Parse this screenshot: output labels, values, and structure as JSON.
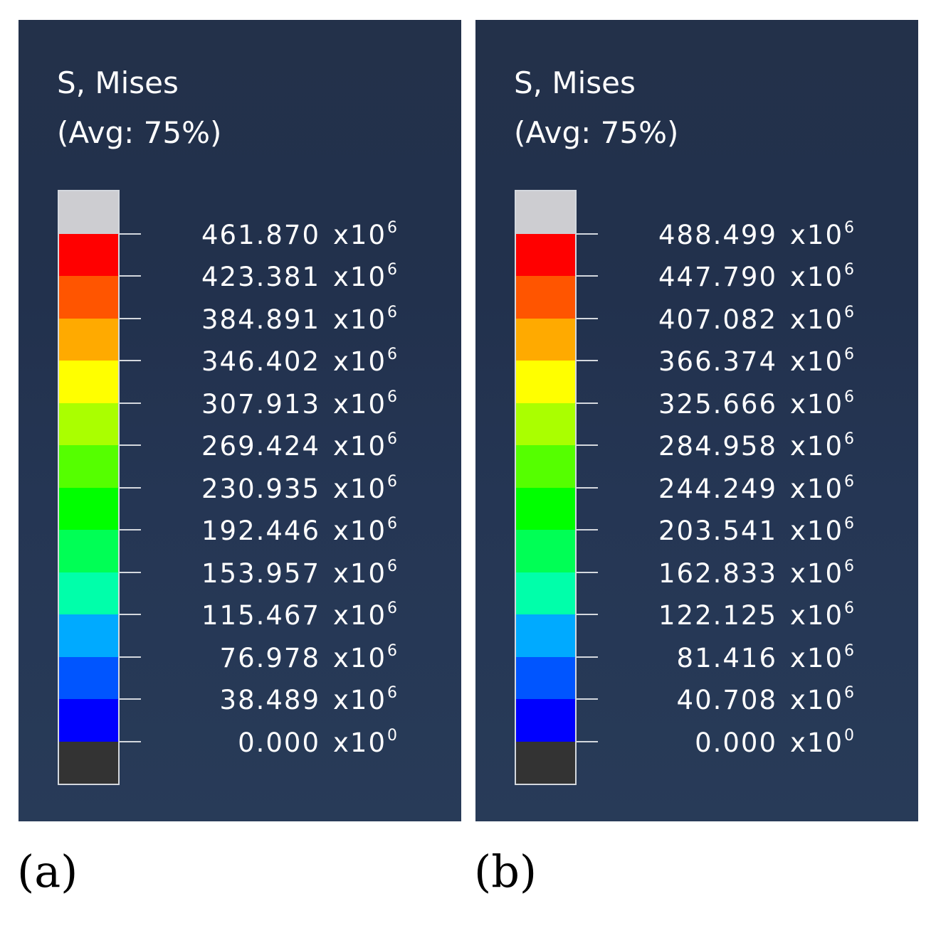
{
  "panels": [
    {
      "title_line1": "S, Mises",
      "title_line2": "(Avg: 75%)",
      "caption": "(a)",
      "colors": [
        "#cdcdd1",
        "#ff0000",
        "#ff5500",
        "#ffaa00",
        "#ffff00",
        "#aaff00",
        "#55ff00",
        "#00ff00",
        "#00ff55",
        "#00ffaa",
        "#00aaff",
        "#0055ff",
        "#0000ff",
        "#333333"
      ],
      "labels": [
        {
          "value": "461.870",
          "unit": "x10",
          "exp": "6"
        },
        {
          "value": "423.381",
          "unit": "x10",
          "exp": "6"
        },
        {
          "value": "384.891",
          "unit": "x10",
          "exp": "6"
        },
        {
          "value": "346.402",
          "unit": "x10",
          "exp": "6"
        },
        {
          "value": "307.913",
          "unit": "x10",
          "exp": "6"
        },
        {
          "value": "269.424",
          "unit": "x10",
          "exp": "6"
        },
        {
          "value": "230.935",
          "unit": "x10",
          "exp": "6"
        },
        {
          "value": "192.446",
          "unit": "x10",
          "exp": "6"
        },
        {
          "value": "153.957",
          "unit": "x10",
          "exp": "6"
        },
        {
          "value": "115.467",
          "unit": "x10",
          "exp": "6"
        },
        {
          "value": "76.978",
          "unit": "x10",
          "exp": "6"
        },
        {
          "value": "38.489",
          "unit": "x10",
          "exp": "6"
        },
        {
          "value": "0.000",
          "unit": "x10",
          "exp": "0"
        }
      ]
    },
    {
      "title_line1": "S, Mises",
      "title_line2": "(Avg: 75%)",
      "caption": "(b)",
      "colors": [
        "#cdcdd1",
        "#ff0000",
        "#ff5500",
        "#ffaa00",
        "#ffff00",
        "#aaff00",
        "#55ff00",
        "#00ff00",
        "#00ff55",
        "#00ffaa",
        "#00aaff",
        "#0055ff",
        "#0000ff",
        "#333333"
      ],
      "labels": [
        {
          "value": "488.499",
          "unit": "x10",
          "exp": "6"
        },
        {
          "value": "447.790",
          "unit": "x10",
          "exp": "6"
        },
        {
          "value": "407.082",
          "unit": "x10",
          "exp": "6"
        },
        {
          "value": "366.374",
          "unit": "x10",
          "exp": "6"
        },
        {
          "value": "325.666",
          "unit": "x10",
          "exp": "6"
        },
        {
          "value": "284.958",
          "unit": "x10",
          "exp": "6"
        },
        {
          "value": "244.249",
          "unit": "x10",
          "exp": "6"
        },
        {
          "value": "203.541",
          "unit": "x10",
          "exp": "6"
        },
        {
          "value": "162.833",
          "unit": "x10",
          "exp": "6"
        },
        {
          "value": "122.125",
          "unit": "x10",
          "exp": "6"
        },
        {
          "value": "81.416",
          "unit": "x10",
          "exp": "6"
        },
        {
          "value": "40.708",
          "unit": "x10",
          "exp": "6"
        },
        {
          "value": "0.000",
          "unit": "x10",
          "exp": "0"
        }
      ]
    }
  ]
}
